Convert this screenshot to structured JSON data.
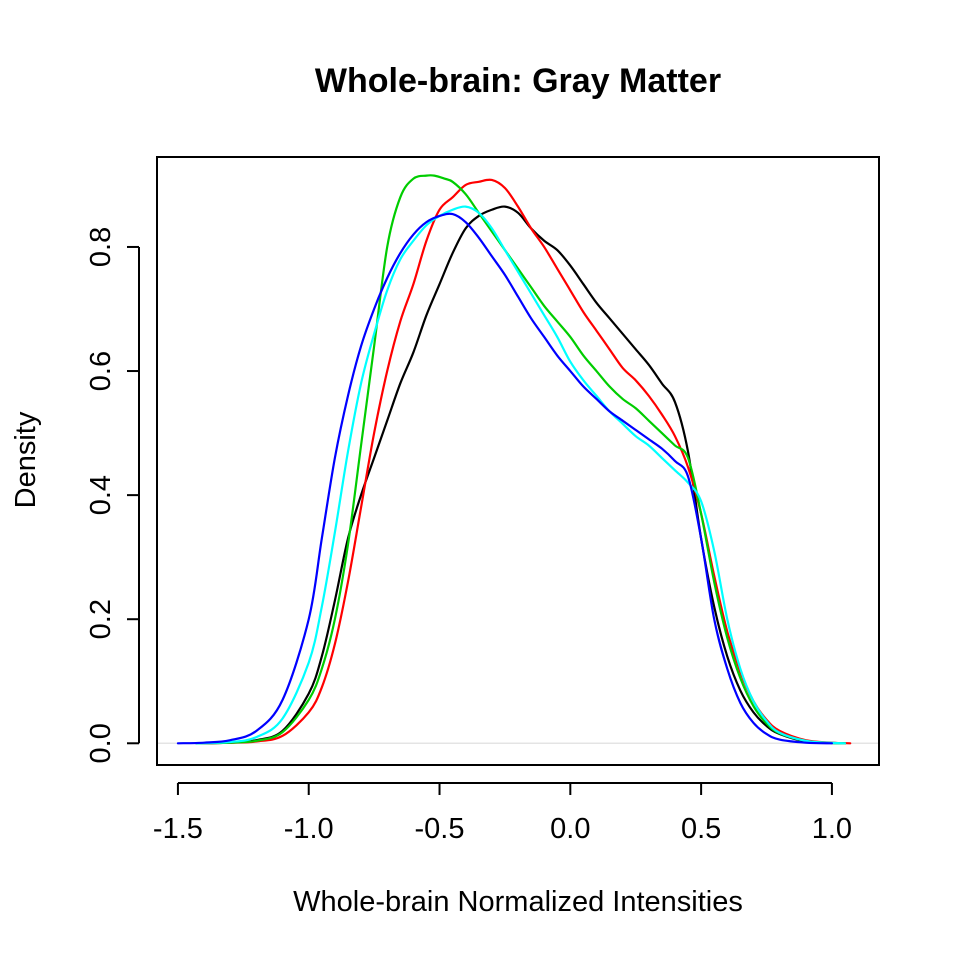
{
  "chart_data": {
    "type": "line",
    "title": "Whole-brain: Gray Matter",
    "xlabel": "Whole-brain Normalized Intensities",
    "ylabel": "Density",
    "xlim": [
      -1.58,
      1.18
    ],
    "ylim": [
      -0.035,
      0.945
    ],
    "xticks": [
      -1.5,
      -1.0,
      -0.5,
      0.0,
      0.5,
      1.0
    ],
    "xtick_labels": [
      "-1.5",
      "-1.0",
      "-0.5",
      "0.0",
      "0.5",
      "1.0"
    ],
    "yticks": [
      0.0,
      0.2,
      0.4,
      0.6,
      0.8
    ],
    "ytick_labels": [
      "0.0",
      "0.2",
      "0.4",
      "0.6",
      "0.8"
    ],
    "legend": "none",
    "grid": false,
    "series": [
      {
        "color": "#000000",
        "x": [
          -1.43,
          -1.3,
          -1.2,
          -1.1,
          -1.0,
          -0.95,
          -0.9,
          -0.85,
          -0.8,
          -0.75,
          -0.7,
          -0.65,
          -0.6,
          -0.55,
          -0.5,
          -0.45,
          -0.4,
          -0.35,
          -0.3,
          -0.25,
          -0.2,
          -0.15,
          -0.1,
          -0.05,
          0.0,
          0.05,
          0.1,
          0.15,
          0.2,
          0.25,
          0.3,
          0.35,
          0.4,
          0.45,
          0.5,
          0.55,
          0.6,
          0.65,
          0.7,
          0.75,
          0.8,
          0.9,
          1.0,
          1.05
        ],
        "y": [
          0.0,
          0.001,
          0.005,
          0.02,
          0.08,
          0.14,
          0.23,
          0.33,
          0.4,
          0.46,
          0.52,
          0.58,
          0.63,
          0.69,
          0.74,
          0.79,
          0.83,
          0.85,
          0.86,
          0.865,
          0.855,
          0.83,
          0.81,
          0.795,
          0.77,
          0.74,
          0.71,
          0.685,
          0.66,
          0.635,
          0.61,
          0.58,
          0.55,
          0.47,
          0.33,
          0.22,
          0.14,
          0.085,
          0.05,
          0.028,
          0.015,
          0.003,
          0.0005,
          0.0
        ]
      },
      {
        "color": "#ff0000",
        "x": [
          -1.43,
          -1.3,
          -1.2,
          -1.1,
          -1.0,
          -0.95,
          -0.9,
          -0.85,
          -0.8,
          -0.75,
          -0.7,
          -0.65,
          -0.6,
          -0.55,
          -0.5,
          -0.45,
          -0.4,
          -0.35,
          -0.3,
          -0.25,
          -0.2,
          -0.15,
          -0.1,
          -0.05,
          0.0,
          0.05,
          0.1,
          0.15,
          0.2,
          0.25,
          0.3,
          0.35,
          0.4,
          0.45,
          0.5,
          0.55,
          0.6,
          0.65,
          0.7,
          0.75,
          0.8,
          0.9,
          1.0,
          1.07
        ],
        "y": [
          0.0,
          0.001,
          0.003,
          0.012,
          0.05,
          0.09,
          0.16,
          0.26,
          0.38,
          0.5,
          0.6,
          0.68,
          0.74,
          0.81,
          0.86,
          0.88,
          0.9,
          0.905,
          0.908,
          0.895,
          0.865,
          0.83,
          0.8,
          0.765,
          0.73,
          0.695,
          0.665,
          0.635,
          0.605,
          0.585,
          0.56,
          0.53,
          0.495,
          0.445,
          0.37,
          0.27,
          0.18,
          0.115,
          0.068,
          0.038,
          0.02,
          0.005,
          0.001,
          0.0
        ]
      },
      {
        "color": "#00cd00",
        "x": [
          -1.43,
          -1.3,
          -1.2,
          -1.1,
          -1.0,
          -0.95,
          -0.9,
          -0.85,
          -0.8,
          -0.75,
          -0.7,
          -0.65,
          -0.6,
          -0.55,
          -0.52,
          -0.48,
          -0.45,
          -0.4,
          -0.35,
          -0.3,
          -0.25,
          -0.2,
          -0.15,
          -0.1,
          -0.05,
          0.0,
          0.05,
          0.1,
          0.15,
          0.2,
          0.25,
          0.3,
          0.35,
          0.4,
          0.45,
          0.5,
          0.55,
          0.6,
          0.65,
          0.7,
          0.75,
          0.8,
          0.9,
          1.0,
          1.05
        ],
        "y": [
          0.0,
          0.001,
          0.004,
          0.018,
          0.07,
          0.12,
          0.2,
          0.32,
          0.48,
          0.64,
          0.8,
          0.88,
          0.91,
          0.915,
          0.915,
          0.91,
          0.905,
          0.885,
          0.855,
          0.825,
          0.795,
          0.765,
          0.735,
          0.705,
          0.68,
          0.655,
          0.625,
          0.6,
          0.575,
          0.555,
          0.54,
          0.52,
          0.5,
          0.48,
          0.46,
          0.37,
          0.26,
          0.17,
          0.105,
          0.06,
          0.032,
          0.016,
          0.004,
          0.0005,
          0.0
        ]
      },
      {
        "color": "#00ffff",
        "x": [
          -1.43,
          -1.3,
          -1.2,
          -1.1,
          -1.0,
          -0.95,
          -0.9,
          -0.85,
          -0.8,
          -0.75,
          -0.7,
          -0.65,
          -0.6,
          -0.55,
          -0.5,
          -0.45,
          -0.4,
          -0.35,
          -0.3,
          -0.25,
          -0.2,
          -0.15,
          -0.1,
          -0.05,
          0.0,
          0.05,
          0.1,
          0.15,
          0.2,
          0.25,
          0.3,
          0.35,
          0.4,
          0.45,
          0.5,
          0.55,
          0.6,
          0.65,
          0.7,
          0.75,
          0.8,
          0.9,
          1.0,
          1.05
        ],
        "y": [
          0.0,
          0.002,
          0.01,
          0.04,
          0.13,
          0.22,
          0.34,
          0.47,
          0.58,
          0.66,
          0.73,
          0.78,
          0.81,
          0.835,
          0.85,
          0.86,
          0.865,
          0.855,
          0.83,
          0.795,
          0.76,
          0.725,
          0.69,
          0.655,
          0.615,
          0.585,
          0.56,
          0.535,
          0.515,
          0.495,
          0.48,
          0.46,
          0.44,
          0.42,
          0.39,
          0.31,
          0.2,
          0.12,
          0.068,
          0.036,
          0.017,
          0.004,
          0.0006,
          0.0
        ]
      },
      {
        "color": "#0000ff",
        "x": [
          -1.5,
          -1.4,
          -1.3,
          -1.2,
          -1.1,
          -1.0,
          -0.95,
          -0.9,
          -0.85,
          -0.8,
          -0.75,
          -0.7,
          -0.65,
          -0.6,
          -0.55,
          -0.5,
          -0.45,
          -0.4,
          -0.35,
          -0.3,
          -0.25,
          -0.2,
          -0.15,
          -0.1,
          -0.05,
          0.0,
          0.05,
          0.1,
          0.15,
          0.2,
          0.25,
          0.3,
          0.35,
          0.4,
          0.45,
          0.5,
          0.55,
          0.6,
          0.65,
          0.7,
          0.75,
          0.8,
          0.9,
          1.0
        ],
        "y": [
          0.0,
          0.001,
          0.005,
          0.02,
          0.07,
          0.2,
          0.33,
          0.46,
          0.56,
          0.64,
          0.7,
          0.75,
          0.79,
          0.82,
          0.84,
          0.85,
          0.853,
          0.84,
          0.815,
          0.785,
          0.755,
          0.72,
          0.685,
          0.655,
          0.625,
          0.6,
          0.575,
          0.555,
          0.535,
          0.52,
          0.505,
          0.49,
          0.475,
          0.455,
          0.43,
          0.33,
          0.2,
          0.12,
          0.065,
          0.033,
          0.015,
          0.006,
          0.001,
          0.0
        ]
      }
    ]
  }
}
